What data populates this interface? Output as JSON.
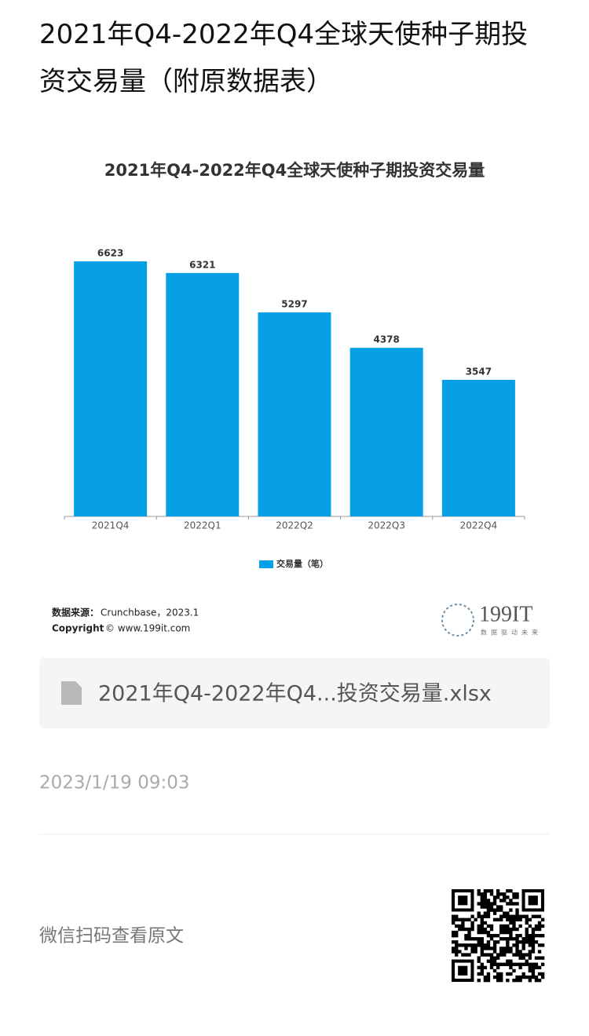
{
  "header": {
    "title": "2021年Q4-2022年Q4全球天使种子期投资交易量（附原数据表）"
  },
  "chart_data": {
    "type": "bar",
    "title": "2021年Q4-2022年Q4全球天使种子期投资交易量",
    "categories": [
      "2021Q4",
      "2022Q1",
      "2022Q2",
      "2022Q3",
      "2022Q4"
    ],
    "series": [
      {
        "name": "交易量（笔）",
        "color": "#079fe6",
        "values": [
          6623,
          6321,
          5297,
          4378,
          3547
        ]
      }
    ],
    "legend": "bottom"
  },
  "source": {
    "label": "数据来源：",
    "text": "Crunchbase，2023.1",
    "copyright_label": "Copyright",
    "copyright_text": "© www.199it.com"
  },
  "logo": {
    "name": "199IT",
    "slogan": "数据驱动未来"
  },
  "attachment": {
    "file_name": "2021年Q4-2022年Q4...投资交易量.xlsx"
  },
  "date": "2023/1/19 09:03",
  "footer": {
    "text": "微信扫码查看原文"
  }
}
